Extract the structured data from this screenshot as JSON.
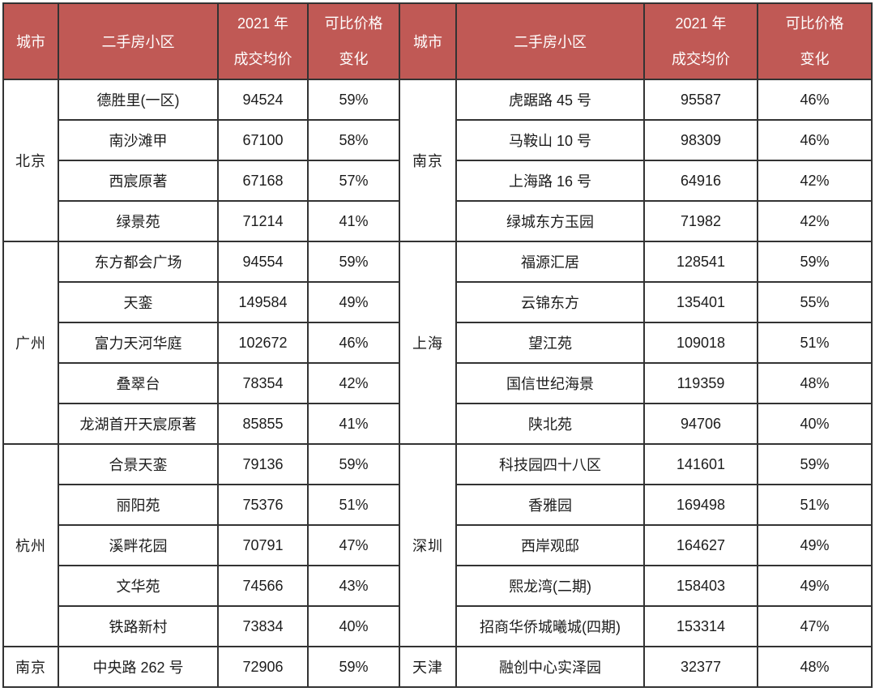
{
  "colors": {
    "header_bg": "#C05955",
    "header_text": "#FFFFFF",
    "body_text": "#1C1C1C",
    "border": "#333333"
  },
  "header": {
    "city": "城市",
    "community": "二手房小区",
    "price_line1": "2021 年",
    "price_line2": "成交均价",
    "change_line1": "可比价格",
    "change_line2": "变化"
  },
  "chart_data": {
    "type": "table",
    "title": "",
    "columns": [
      "城市",
      "二手房小区",
      "2021 年成交均价",
      "可比价格变化"
    ],
    "layout": "two tables side by side sharing one header style; city cells span multiple community rows",
    "left_groups": [
      {
        "city": "北京",
        "rows": [
          {
            "name": "德胜里(一区)",
            "price": 94524,
            "change": "59%"
          },
          {
            "name": "南沙滩甲",
            "price": 67100,
            "change": "58%"
          },
          {
            "name": "西宸原著",
            "price": 67168,
            "change": "57%"
          },
          {
            "name": "绿景苑",
            "price": 71214,
            "change": "41%"
          }
        ]
      },
      {
        "city": "广州",
        "rows": [
          {
            "name": "东方都会广场",
            "price": 94554,
            "change": "59%"
          },
          {
            "name": "天銮",
            "price": 149584,
            "change": "49%"
          },
          {
            "name": "富力天河华庭",
            "price": 102672,
            "change": "46%"
          },
          {
            "name": "叠翠台",
            "price": 78354,
            "change": "42%"
          },
          {
            "name": "龙湖首开天宸原著",
            "price": 85855,
            "change": "41%"
          }
        ]
      },
      {
        "city": "杭州",
        "rows": [
          {
            "name": "合景天銮",
            "price": 79136,
            "change": "59%"
          },
          {
            "name": "丽阳苑",
            "price": 75376,
            "change": "51%"
          },
          {
            "name": "溪畔花园",
            "price": 70791,
            "change": "47%"
          },
          {
            "name": "文华苑",
            "price": 74566,
            "change": "43%"
          },
          {
            "name": "铁路新村",
            "price": 73834,
            "change": "40%"
          }
        ]
      },
      {
        "city": "南京",
        "rows": [
          {
            "name": "中央路 262 号",
            "price": 72906,
            "change": "59%"
          }
        ]
      }
    ],
    "right_groups": [
      {
        "city": "南京",
        "rows": [
          {
            "name": "虎踞路 45 号",
            "price": 95587,
            "change": "46%"
          },
          {
            "name": "马鞍山 10 号",
            "price": 98309,
            "change": "46%"
          },
          {
            "name": "上海路 16 号",
            "price": 64916,
            "change": "42%"
          },
          {
            "name": "绿城东方玉园",
            "price": 71982,
            "change": "42%"
          }
        ]
      },
      {
        "city": "上海",
        "rows": [
          {
            "name": "福源汇居",
            "price": 128541,
            "change": "59%"
          },
          {
            "name": "云锦东方",
            "price": 135401,
            "change": "55%"
          },
          {
            "name": "望江苑",
            "price": 109018,
            "change": "51%"
          },
          {
            "name": "国信世纪海景",
            "price": 119359,
            "change": "48%"
          },
          {
            "name": "陕北苑",
            "price": 94706,
            "change": "40%"
          }
        ]
      },
      {
        "city": "深圳",
        "rows": [
          {
            "name": "科技园四十八区",
            "price": 141601,
            "change": "59%"
          },
          {
            "name": "香雅园",
            "price": 169498,
            "change": "51%"
          },
          {
            "name": "西岸观邸",
            "price": 164627,
            "change": "49%"
          },
          {
            "name": "熙龙湾(二期)",
            "price": 158403,
            "change": "49%"
          },
          {
            "name": "招商华侨城曦城(四期)",
            "price": 153314,
            "change": "47%"
          }
        ]
      },
      {
        "city": "天津",
        "rows": [
          {
            "name": "融创中心实泽园",
            "price": 32377,
            "change": "48%"
          }
        ]
      }
    ]
  }
}
